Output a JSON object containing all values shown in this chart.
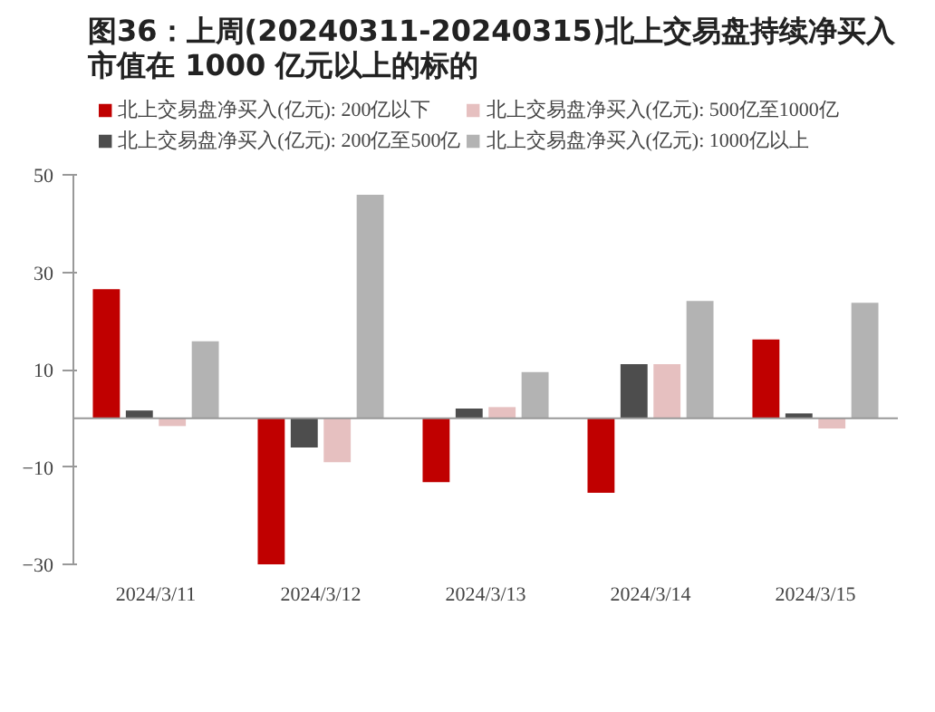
{
  "chart_data": {
    "type": "bar",
    "title": "图36：上周(20240311-20240315)北上交易盘持续净买入市值在 1000 亿元以上的标的",
    "categories": [
      "2024/3/11",
      "2024/3/12",
      "2024/3/13",
      "2024/3/14",
      "2024/3/15"
    ],
    "series": [
      {
        "name": "北上交易盘净买入(亿元): 200亿以下",
        "color": "#c00000",
        "values": [
          26.5,
          -30,
          -13.1,
          -15.3,
          16.2
        ]
      },
      {
        "name": "北上交易盘净买入(亿元): 200亿至500亿",
        "color": "#4d4d4d",
        "values": [
          1.6,
          -6,
          2.0,
          11.1,
          1.0
        ]
      },
      {
        "name": "北上交易盘净买入(亿元): 500亿至1000亿",
        "color": "#e6c0c0",
        "values": [
          -1.6,
          -9,
          2.3,
          11.1,
          -2.1
        ]
      },
      {
        "name": "北上交易盘净买入(亿元): 1000亿以上",
        "color": "#b3b3b3",
        "values": [
          15.8,
          45.9,
          9.5,
          24.1,
          23.7
        ]
      }
    ],
    "ylim": [
      -30,
      50
    ],
    "yticks": [
      -30,
      -10,
      10,
      30,
      50
    ],
    "grid": false,
    "legend": "top"
  }
}
